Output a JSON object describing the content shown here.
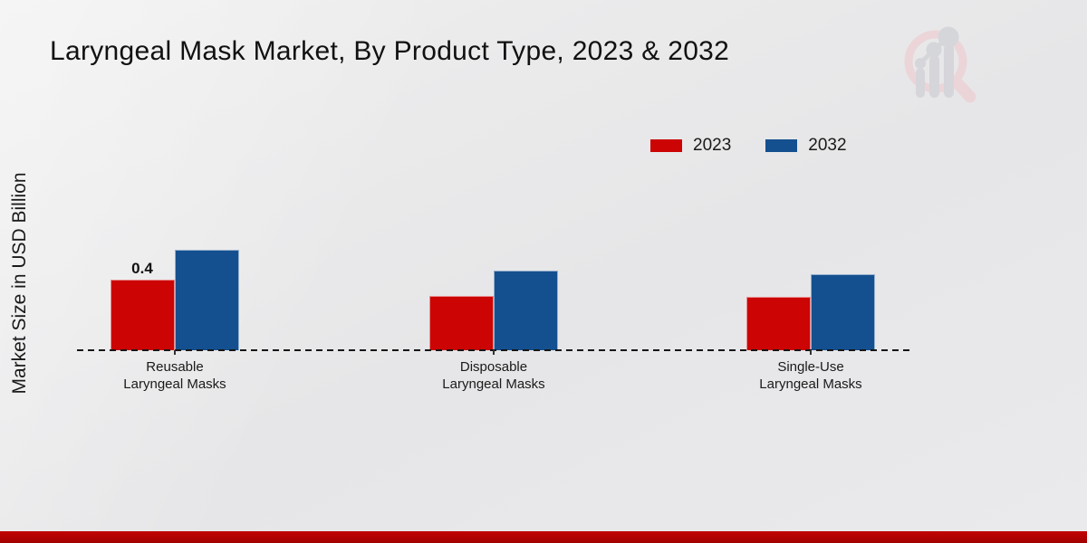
{
  "page": {
    "title": "Laryngeal Mask Market, By Product Type, 2023 & 2032",
    "y_axis_label": "Market Size in USD Billion",
    "watermark_icon": "magnifier-bar-chart-logo-icon",
    "footer_band_color": "#b30303",
    "background_color": "#e8e8ea"
  },
  "chart_data": {
    "type": "bar",
    "title": "Laryngeal Mask Market, By Product Type, 2023 & 2032",
    "xlabel": "",
    "ylabel": "Market Size in USD Billion",
    "categories": [
      "Reusable Laryngeal Masks",
      "Disposable Laryngeal Masks",
      "Single-Use Laryngeal Masks"
    ],
    "series": [
      {
        "name": "2023",
        "color": "#cc0404",
        "values": [
          0.4,
          0.31,
          0.3
        ]
      },
      {
        "name": "2032",
        "color": "#14508f",
        "values": [
          0.57,
          0.45,
          0.43
        ]
      }
    ],
    "bar_labels": [
      {
        "category_index": 0,
        "series_index": 0,
        "text": "0.4"
      }
    ],
    "ylim": [
      0,
      0.6
    ],
    "grid": false,
    "legend_position": "top-right",
    "baseline_style": "dashed"
  }
}
